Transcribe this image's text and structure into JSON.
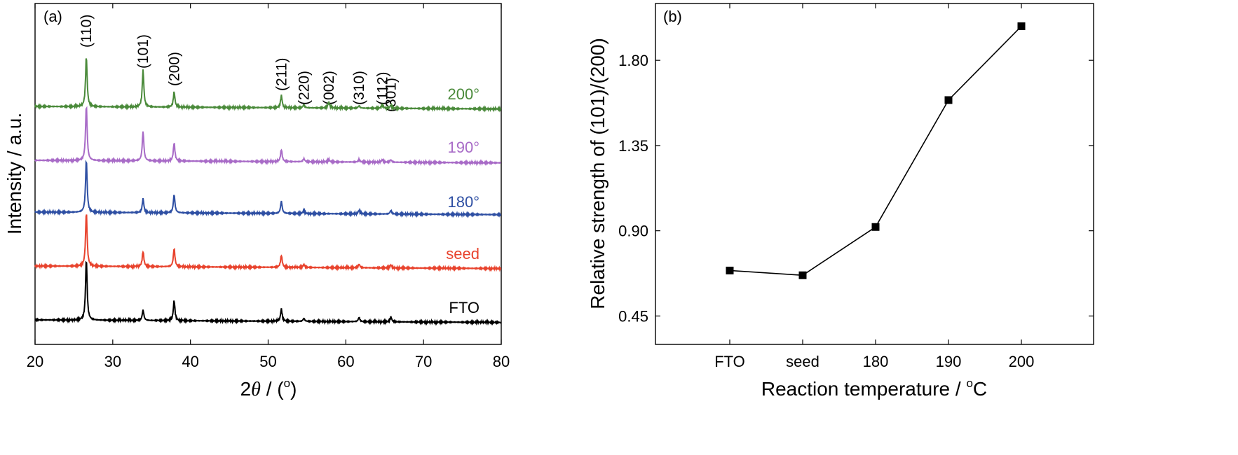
{
  "chart_data": [
    {
      "type": "line",
      "panel_label": "(a)",
      "xlabel_prefix": "2",
      "xlabel_symbol": "θ",
      "xlabel_suffix": " / (",
      "xlabel_unit": "o",
      "xlabel_close": ")",
      "ylabel": "Intensity / a.u.",
      "xlim": [
        20,
        80
      ],
      "xticks": [
        20,
        30,
        40,
        50,
        60,
        70,
        80
      ],
      "peak_labels": [
        {
          "label": "(110)",
          "x": 26.6
        },
        {
          "label": "(101)",
          "x": 33.9
        },
        {
          "label": "(200)",
          "x": 37.9
        },
        {
          "label": "(211)",
          "x": 51.7
        },
        {
          "label": "(220)",
          "x": 54.6
        },
        {
          "label": "(002)",
          "x": 57.8
        },
        {
          "label": "(310)",
          "x": 61.7
        },
        {
          "label": "(112)",
          "x": 64.7
        },
        {
          "label": "(301)",
          "x": 65.8
        }
      ],
      "series": [
        {
          "name": "FTO",
          "color": "#000000",
          "peaks": [
            [
              26.6,
              1.0
            ],
            [
              33.9,
              0.17
            ],
            [
              37.9,
              0.33
            ],
            [
              51.7,
              0.2
            ],
            [
              54.6,
              0.05
            ],
            [
              61.7,
              0.07
            ],
            [
              65.8,
              0.08
            ]
          ]
        },
        {
          "name": "seed",
          "color": "#e8432d",
          "peaks": [
            [
              26.6,
              0.88
            ],
            [
              33.9,
              0.25
            ],
            [
              37.9,
              0.3
            ],
            [
              51.7,
              0.2
            ],
            [
              54.6,
              0.05
            ],
            [
              61.7,
              0.06
            ],
            [
              65.8,
              0.05
            ]
          ]
        },
        {
          "name": "180°",
          "color": "#2e4fa3",
          "peaks": [
            [
              26.6,
              0.86
            ],
            [
              33.9,
              0.23
            ],
            [
              37.9,
              0.3
            ],
            [
              51.7,
              0.2
            ],
            [
              54.6,
              0.05
            ],
            [
              61.7,
              0.06
            ],
            [
              65.8,
              0.06
            ]
          ]
        },
        {
          "name": "190°",
          "color": "#a86bc7",
          "peaks": [
            [
              26.6,
              0.9
            ],
            [
              33.9,
              0.48
            ],
            [
              37.9,
              0.3
            ],
            [
              51.7,
              0.2
            ],
            [
              54.6,
              0.05
            ],
            [
              57.8,
              0.04
            ],
            [
              61.7,
              0.04
            ],
            [
              64.7,
              0.04
            ],
            [
              65.8,
              0.04
            ]
          ]
        },
        {
          "name": "200°",
          "color": "#4a8a3a",
          "peaks": [
            [
              26.6,
              0.82
            ],
            [
              33.9,
              0.6
            ],
            [
              37.9,
              0.25
            ],
            [
              51.7,
              0.2
            ],
            [
              54.6,
              0.05
            ],
            [
              57.8,
              0.1
            ],
            [
              61.7,
              0.04
            ],
            [
              64.7,
              0.06
            ],
            [
              65.8,
              0.05
            ]
          ]
        }
      ]
    },
    {
      "type": "line",
      "panel_label": "(b)",
      "xlabel_main": "Reaction temperature / ",
      "xlabel_unit_sup": "o",
      "xlabel_unit": "C",
      "ylabel": "Relative strength of (101)/(200)",
      "categories": [
        "FTO",
        "seed",
        "180",
        "190",
        "200"
      ],
      "values": [
        0.69,
        0.665,
        0.92,
        1.59,
        1.98
      ],
      "ylim": [
        0.3,
        2.1
      ],
      "yticks": [
        "0.45",
        "0.90",
        "1.35",
        "1.80"
      ],
      "marker": "square",
      "color": "#000000"
    }
  ]
}
